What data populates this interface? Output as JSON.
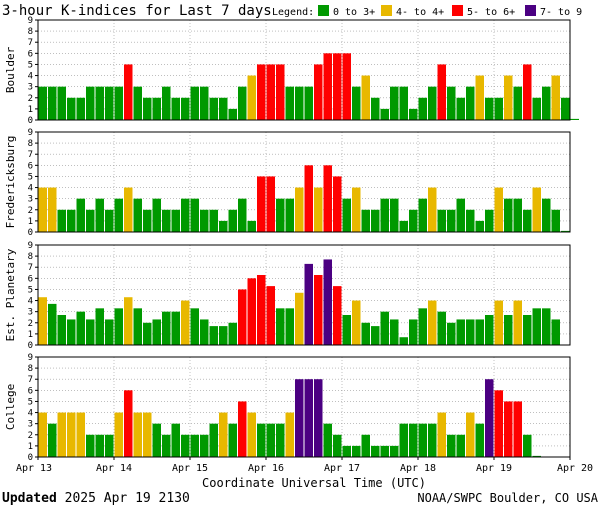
{
  "chart_data": {
    "type": "bar",
    "title": "3-hour K-indices for Last 7 days",
    "legend_label": "Legend:",
    "legend": [
      {
        "label": "0 to 3+",
        "color": "#009900"
      },
      {
        "label": "4- to 4+",
        "color": "#e8b800"
      },
      {
        "label": "5- to 6+",
        "color": "#ff0000"
      },
      {
        "label": "7- to 9",
        "color": "#4b0082"
      }
    ],
    "xlabel": "Coordinate Universal Time (UTC)",
    "x_ticks": [
      "Apr 13",
      "Apr 14",
      "Apr 15",
      "Apr 16",
      "Apr 17",
      "Apr 18",
      "Apr 19",
      "Apr 20"
    ],
    "ylim": [
      0,
      9
    ],
    "y_ticks": [
      0,
      1,
      2,
      3,
      4,
      5,
      6,
      7,
      8,
      9
    ],
    "slots_per_day": 8,
    "series": [
      {
        "name": "Boulder",
        "values": [
          3,
          3,
          3,
          2,
          2,
          3,
          3,
          3,
          3,
          5,
          3,
          2,
          2,
          3,
          2,
          2,
          3,
          3,
          2,
          2,
          1,
          3,
          4,
          5,
          5,
          5,
          3,
          3,
          3,
          5,
          6,
          6,
          6,
          3,
          4,
          2,
          1,
          3,
          3,
          1,
          2,
          3,
          5,
          3,
          2,
          3,
          4,
          2,
          2,
          4,
          3,
          5,
          2,
          3,
          4,
          2,
          0.1
        ]
      },
      {
        "name": "Fredericksburg",
        "values": [
          4,
          4,
          2,
          2,
          3,
          2,
          3,
          2,
          3,
          4,
          3,
          2,
          3,
          2,
          2,
          3,
          3,
          2,
          2,
          1,
          2,
          3,
          1,
          5,
          5,
          3,
          3,
          4,
          6,
          4,
          6,
          5,
          3,
          4,
          2,
          2,
          3,
          3,
          1,
          2,
          3,
          4,
          2,
          2,
          3,
          2,
          1,
          2,
          4,
          3,
          3,
          2,
          4,
          3,
          2,
          0.1
        ]
      },
      {
        "name": "Est. Planetary",
        "values": [
          4.3,
          3.7,
          2.7,
          2.3,
          3,
          2.3,
          3.3,
          2.3,
          3.3,
          4.3,
          3.3,
          2,
          2.3,
          3,
          3,
          4,
          3.3,
          2.3,
          1.7,
          1.7,
          2,
          5,
          6,
          6.3,
          5.3,
          3.3,
          3.3,
          4.7,
          7.3,
          6.3,
          7.7,
          5.3,
          2.7,
          4,
          2,
          1.7,
          3,
          2.3,
          0.7,
          2.3,
          3.3,
          4,
          3,
          2,
          2.3,
          2.3,
          2.3,
          2.7,
          4,
          2.7,
          4,
          2.7,
          3.3,
          3.3,
          2.3
        ]
      },
      {
        "name": "College",
        "values": [
          4,
          3,
          4,
          4,
          4,
          2,
          2,
          2,
          4,
          6,
          4,
          4,
          3,
          2,
          3,
          2,
          2,
          2,
          3,
          4,
          3,
          5,
          4,
          3,
          3,
          3,
          4,
          7,
          7,
          7,
          3,
          2,
          1,
          1,
          2,
          1,
          1,
          1,
          3,
          3,
          3,
          3,
          4,
          2,
          2,
          4,
          3,
          7,
          6,
          5,
          5,
          2,
          0.1
        ]
      }
    ]
  },
  "footer": {
    "updated_label": "Updated",
    "updated_time": "2025 Apr 19 2130",
    "source": "NOAA/SWPC Boulder, CO USA"
  }
}
